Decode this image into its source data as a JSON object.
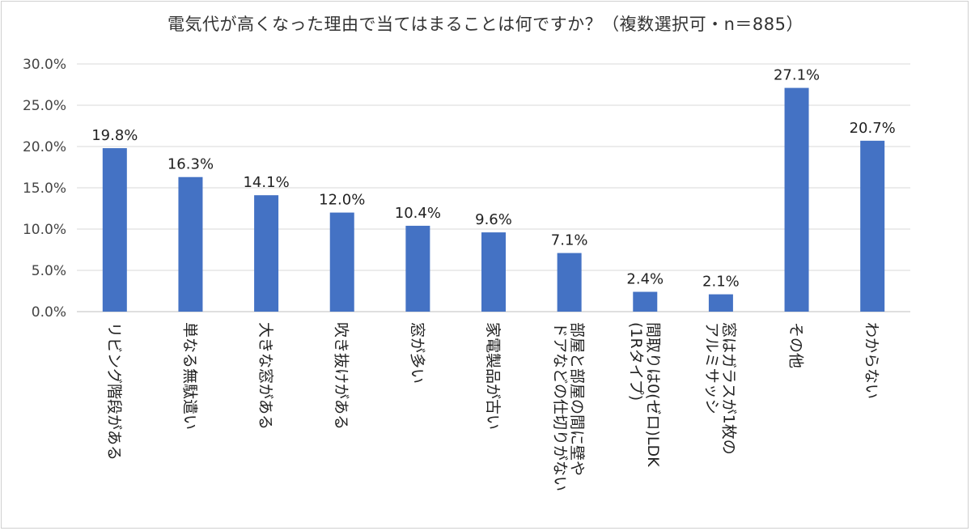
{
  "chart_data": {
    "type": "bar",
    "title": "電気代が高くなった理由で当てはまることは何ですか？（複数選択可・n＝885）",
    "categories": [
      [
        "リビング階段がある"
      ],
      [
        "単なる無駄遣い"
      ],
      [
        "大きな窓がある"
      ],
      [
        "吹き抜けがある"
      ],
      [
        "窓が多い"
      ],
      [
        "家電製品が古い"
      ],
      [
        "部屋と部屋の間に壁や",
        "ドアなどの仕切りがない"
      ],
      [
        "間取りは0(ゼロ)LDK",
        "(1Rタイプ)"
      ],
      [
        "窓はガラスが1枚の",
        "アルミサッシ"
      ],
      [
        "その他"
      ],
      [
        "わからない"
      ]
    ],
    "values": [
      19.8,
      16.3,
      14.1,
      12.0,
      10.4,
      9.6,
      7.1,
      2.4,
      2.1,
      27.1,
      20.7
    ],
    "value_labels": [
      "19.8%",
      "16.3%",
      "14.1%",
      "12.0%",
      "10.4%",
      "9.6%",
      "7.1%",
      "2.4%",
      "2.1%",
      "27.1%",
      "20.7%"
    ],
    "yticks": [
      0,
      5,
      10,
      15,
      20,
      25,
      30
    ],
    "ytick_labels": [
      "0.0%",
      "5.0%",
      "10.0%",
      "15.0%",
      "20.0%",
      "25.0%",
      "30.0%"
    ],
    "ylim": [
      0,
      30
    ],
    "xlabel": "",
    "ylabel": "",
    "grid": true,
    "bar_color": "#4472C4",
    "grid_color": "#d9d9d9"
  }
}
